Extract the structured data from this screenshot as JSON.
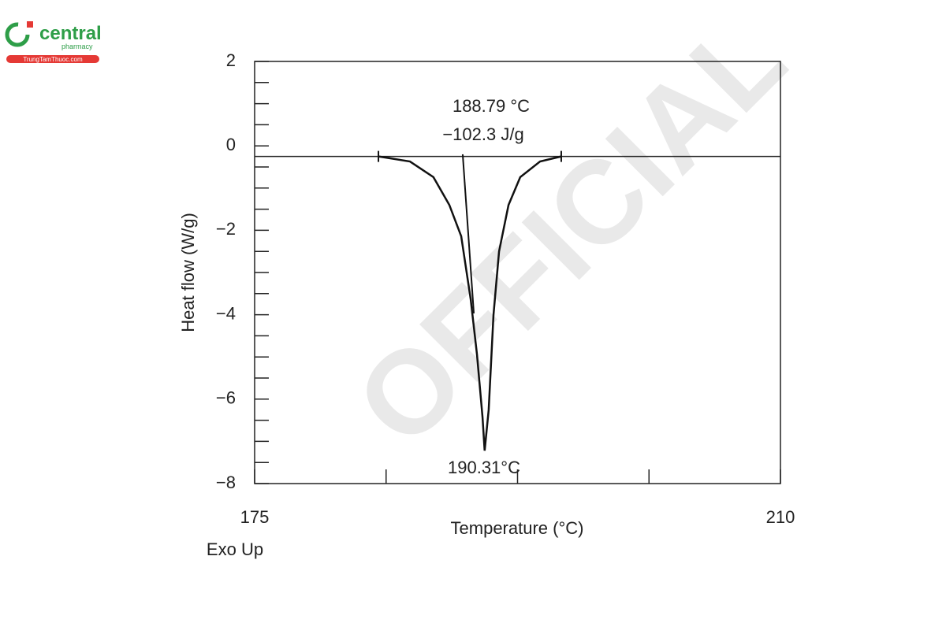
{
  "logo": {
    "name": "central",
    "sub": "pharmacy",
    "site": "TrungTamThuoc.com"
  },
  "watermark": "OFFICIAL",
  "chart_data": {
    "type": "line",
    "x_label": "Temperature (°C)",
    "y_label": "Heat flow (W/g)",
    "annotations": [
      "188.79 °C",
      "−102.3 J/g",
      "190.31°C",
      "Exo Up"
    ],
    "x": [
      183.24,
      185.34,
      186.9,
      187.96,
      188.75,
      189.38,
      189.8,
      190.17,
      190.31,
      190.58,
      190.9,
      191.27,
      191.9,
      192.68,
      194.0,
      195.41
    ],
    "values": [
      -0.25,
      -0.37,
      -0.74,
      -1.4,
      -2.14,
      -3.63,
      -4.94,
      -6.43,
      -7.22,
      -6.25,
      -4.0,
      -2.5,
      -1.4,
      -0.74,
      -0.37,
      -0.25
    ],
    "tangent": {
      "x": [
        188.85,
        189.59
      ],
      "values": [
        -0.2,
        -3.97
      ]
    },
    "baseline": -0.25,
    "color": "#111111",
    "xlim": [
      175,
      210
    ],
    "xticks": [
      175,
      210
    ],
    "xminor_ticks": [
      183.75,
      192.5,
      201.25
    ],
    "ylim": [
      -8,
      2
    ],
    "yticks": [
      2,
      0,
      {
        "value": -2,
        "label": "−2"
      },
      {
        "value": -4,
        "label": "−4"
      },
      {
        "value": -6,
        "label": "−6"
      },
      {
        "value": -8,
        "label": "−8"
      }
    ],
    "yminor_ticks": [
      1.5,
      1,
      0.5,
      -0.5,
      -1,
      -1.5,
      -2.5,
      -3,
      -3.5,
      -4.5,
      -5,
      -5.5,
      -6.5,
      -7,
      -7.5
    ]
  }
}
